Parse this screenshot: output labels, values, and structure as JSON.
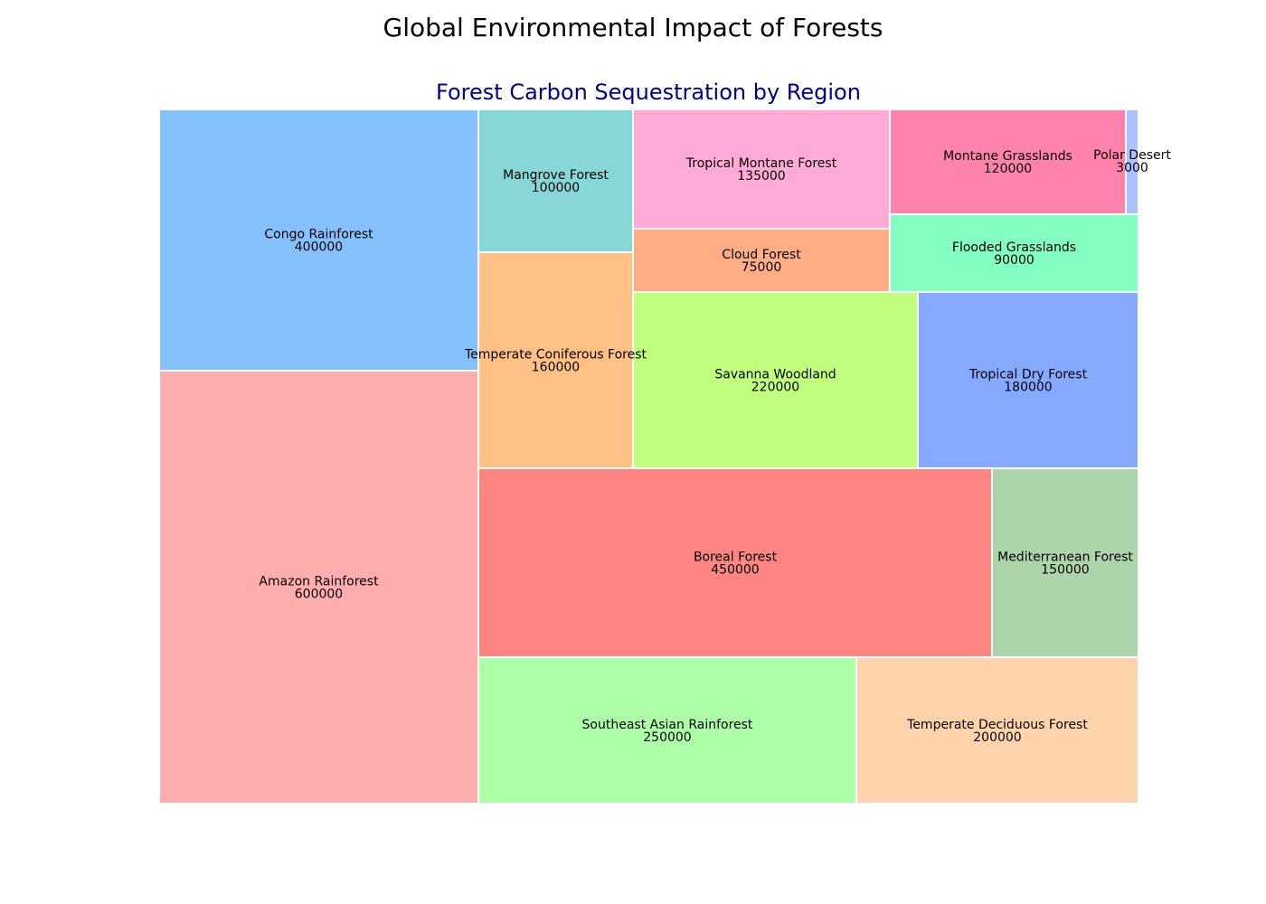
{
  "figure_title": "Global Environmental Impact of Forests",
  "chart_data": {
    "type": "treemap",
    "title": "Forest Carbon Sequestration by Region",
    "title_color": "#00008b",
    "items": [
      {
        "name": "Amazon Rainforest",
        "value": 600000,
        "color": "#ffadae"
      },
      {
        "name": "Congo Rainforest",
        "value": 400000,
        "color": "#85c1ff"
      },
      {
        "name": "Boreal Forest",
        "value": 450000,
        "color": "#ff8583"
      },
      {
        "name": "Mediterranean Forest",
        "value": 150000,
        "color": "#add4aa"
      },
      {
        "name": "Southeast Asian Rainforest",
        "value": 250000,
        "color": "#adffa8"
      },
      {
        "name": "Temperate Deciduous Forest",
        "value": 200000,
        "color": "#ffd4ad"
      },
      {
        "name": "Mangrove Forest",
        "value": 100000,
        "color": "#87d7d7"
      },
      {
        "name": "Temperate Coniferous Forest",
        "value": 160000,
        "color": "#ffc185"
      },
      {
        "name": "Tropical Montane Forest",
        "value": 135000,
        "color": "#ffaad7"
      },
      {
        "name": "Cloud Forest",
        "value": 75000,
        "color": "#ffad85"
      },
      {
        "name": "Montane Grasslands",
        "value": 120000,
        "color": "#ff83ad"
      },
      {
        "name": "Polar Desert",
        "value": 3000,
        "color": "#adc1ff"
      },
      {
        "name": "Flooded Grasslands",
        "value": 90000,
        "color": "#83ffc1"
      },
      {
        "name": "Savanna Woodland",
        "value": 220000,
        "color": "#c1ff7f"
      },
      {
        "name": "Tropical Dry Forest",
        "value": 180000,
        "color": "#85aaff"
      }
    ]
  }
}
